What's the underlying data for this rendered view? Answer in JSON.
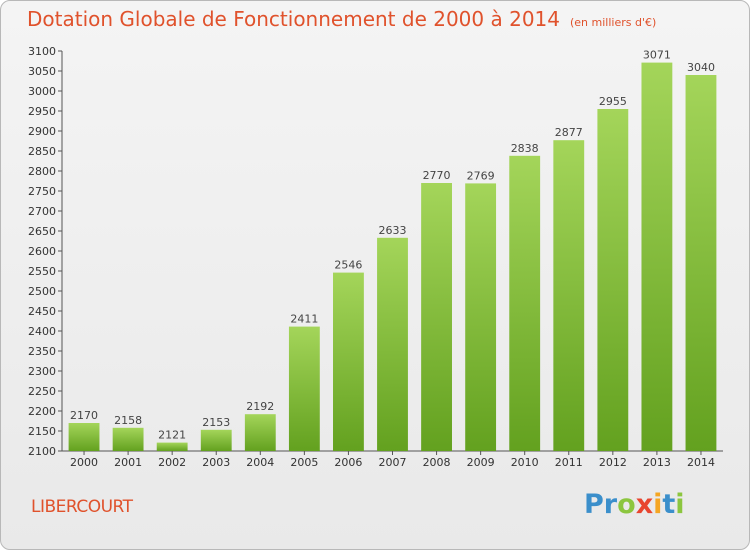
{
  "chart_data": {
    "type": "bar",
    "title": "Dotation Globale de Fonctionnement de 2000 à 2014",
    "unit_label": "(en milliers d'€)",
    "categories": [
      "2000",
      "2001",
      "2002",
      "2003",
      "2004",
      "2005",
      "2006",
      "2007",
      "2008",
      "2009",
      "2010",
      "2011",
      "2012",
      "2013",
      "2014"
    ],
    "values": [
      2170,
      2158,
      2121,
      2153,
      2192,
      2411,
      2546,
      2633,
      2770,
      2769,
      2838,
      2877,
      2955,
      3071,
      3040
    ],
    "ylim": [
      2100,
      3100
    ],
    "ytick_step": 50,
    "xlabel": "",
    "ylabel": "",
    "grid": false,
    "colors": {
      "bar_top": "#a4d55a",
      "bar_bottom": "#63a11f",
      "title": "#e0522c"
    }
  },
  "footer": {
    "city": "LIBERCOURT",
    "logo_letters": [
      {
        "ch": "P",
        "color": "#3b8fcb"
      },
      {
        "ch": "r",
        "color": "#3b8fcb"
      },
      {
        "ch": "o",
        "color": "#8cc63f"
      },
      {
        "ch": "x",
        "color": "#e8452f"
      },
      {
        "ch": "i",
        "color": "#f5a623"
      },
      {
        "ch": "t",
        "color": "#3b8fcb"
      },
      {
        "ch": "i",
        "color": "#8cc63f"
      }
    ]
  }
}
